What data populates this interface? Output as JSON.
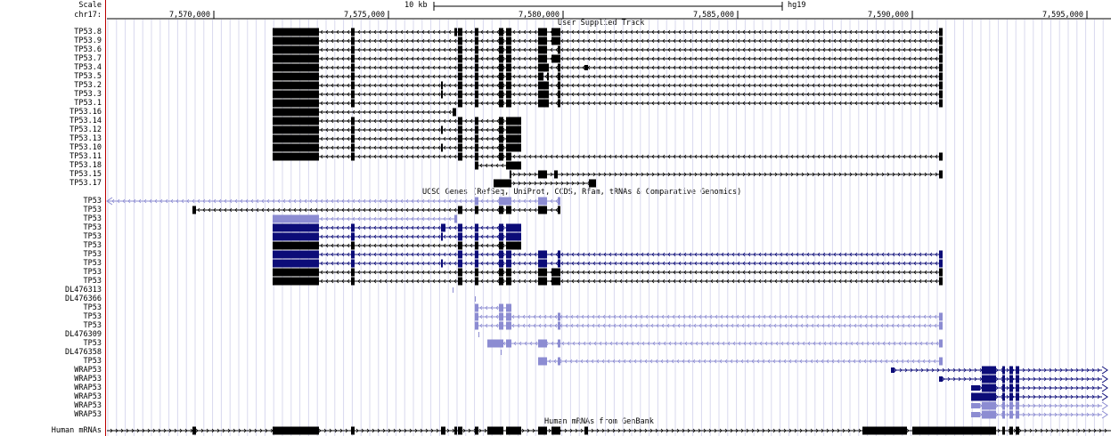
{
  "ruler": {
    "scale_label": "Scale",
    "chrom_label": "chr17:",
    "scale_bar_text": "10 kb",
    "assembly": "hg19",
    "ticks": [
      "7,570,000",
      "7,575,000",
      "7,580,000",
      "7,585,000",
      "7,590,000",
      "7,595,000"
    ]
  },
  "tracks": {
    "user": {
      "title": "User Supplied Track",
      "rows": [
        "TP53.8",
        "TP53.9",
        "TP53.6",
        "TP53.7",
        "TP53.4",
        "TP53.5",
        "TP53.2",
        "TP53.3",
        "TP53.1",
        "TP53.16",
        "TP53.14",
        "TP53.12",
        "TP53.13",
        "TP53.10",
        "TP53.11",
        "TP53.18",
        "TP53.15",
        "TP53.17"
      ]
    },
    "ucsc": {
      "title": "UCSC Genes (RefSeq, UniProt, CCDS, Rfam, tRNAs & Comparative Genomics)",
      "rows": [
        "TP53",
        "TP53",
        "TP53",
        "TP53",
        "TP53",
        "TP53",
        "TP53",
        "TP53",
        "TP53",
        "TP53",
        "DL476313",
        "DL476366",
        "TP53",
        "TP53",
        "TP53",
        "DL476309",
        "TP53",
        "DL476358",
        "TP53",
        "WRAP53",
        "WRAP53",
        "WRAP53",
        "WRAP53",
        "WRAP53",
        "WRAP53"
      ]
    },
    "mrna": {
      "title": "Human mRNAs from GenBank",
      "rows": [
        "Human mRNAs"
      ]
    }
  },
  "colors": {
    "black": "#000000",
    "navy": "#0c0c78",
    "light_blue": "#8c8cd2",
    "grid": "#d9d9ee",
    "separator": "#bb0000"
  }
}
